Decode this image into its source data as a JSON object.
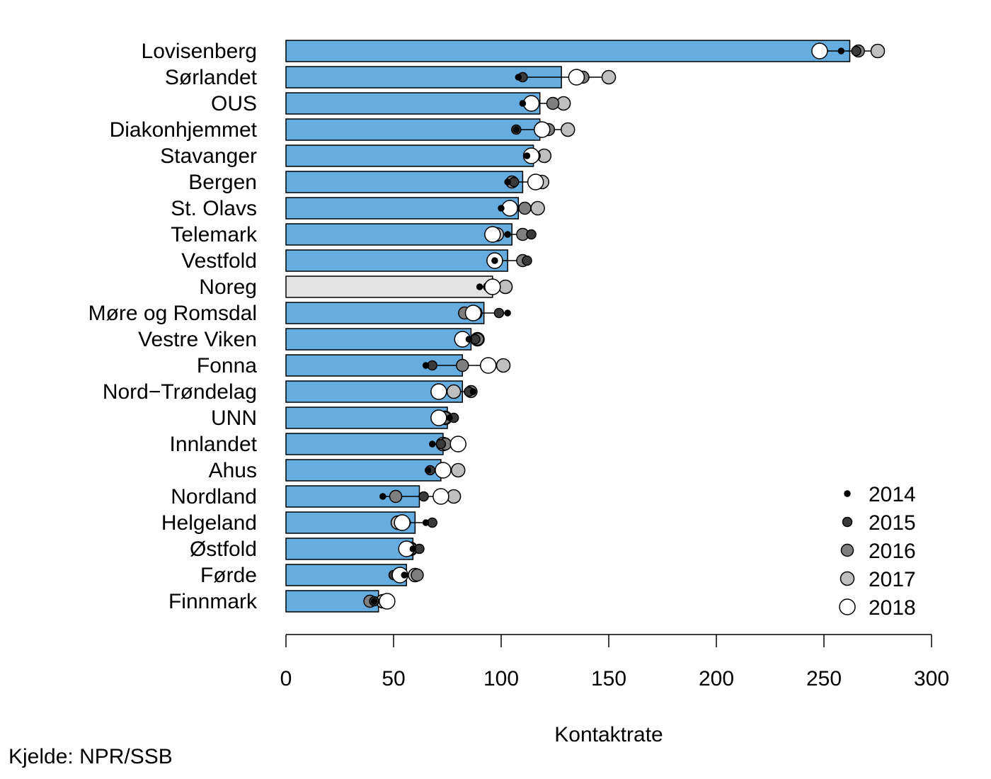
{
  "chart_data": {
    "type": "bar",
    "orientation": "horizontal",
    "title": "",
    "xlabel": "Kontaktrate",
    "ylabel": "",
    "xlim": [
      0,
      300
    ],
    "xticks": [
      0,
      50,
      100,
      150,
      200,
      250,
      300
    ],
    "grid": false,
    "legend_position": "bottom-right",
    "colors": {
      "bar": "#66ACDF",
      "bar_highlight": "#E3E3E3",
      "y2014": "#000000",
      "y2015": "#3a3a3a",
      "y2016": "#7f7f7f",
      "y2017": "#bfbfbf",
      "y2018": "#ffffff"
    },
    "legend": [
      "2014",
      "2015",
      "2016",
      "2017",
      "2018"
    ],
    "highlight_category": "Noreg",
    "categories": [
      "Lovisenberg",
      "Sørlandet",
      "OUS",
      "Diakonhjemmet",
      "Stavanger",
      "Bergen",
      "St. Olavs",
      "Telemark",
      "Vestfold",
      "Noreg",
      "Møre og Romsdal",
      "Vestre Viken",
      "Fonna",
      "Nord−Trøndelag",
      "UNN",
      "Innlandet",
      "Ahus",
      "Nordland",
      "Helgeland",
      "Østfold",
      "Førde",
      "Finnmark"
    ],
    "values": [
      262,
      128,
      118,
      118,
      115,
      110,
      108,
      105,
      103,
      96,
      92,
      86,
      82,
      82,
      75,
      73,
      72,
      62,
      60,
      59,
      56,
      43
    ],
    "points": [
      {
        "y2014": 258,
        "y2015": 265,
        "y2016": 266,
        "y2017": 275,
        "y2018": 248
      },
      {
        "y2014": 108,
        "y2015": 110,
        "y2016": 138,
        "y2017": 150,
        "y2018": 135
      },
      {
        "y2014": 110,
        "y2015": 113,
        "y2016": 124,
        "y2017": 129,
        "y2018": 114
      },
      {
        "y2014": 107,
        "y2015": 107,
        "y2016": 122,
        "y2017": 131,
        "y2018": 119
      },
      {
        "y2014": 112,
        "y2015": 116,
        "y2016": 115,
        "y2017": 120,
        "y2018": 114
      },
      {
        "y2014": 103,
        "y2015": 106,
        "y2016": 105,
        "y2017": 119,
        "y2018": 116
      },
      {
        "y2014": 100,
        "y2015": 105,
        "y2016": 111,
        "y2017": 117,
        "y2018": 104
      },
      {
        "y2014": 103,
        "y2015": 114,
        "y2016": 110,
        "y2017": 98,
        "y2018": 96
      },
      {
        "y2014": 97,
        "y2015": 112,
        "y2016": 110,
        "y2017": 97,
        "y2018": 97
      },
      {
        "y2014": 90,
        "y2015": 94,
        "y2016": 96,
        "y2017": 102,
        "y2018": 96
      },
      {
        "y2014": 103,
        "y2015": 99,
        "y2016": 83,
        "y2017": 88,
        "y2018": 87
      },
      {
        "y2014": 85,
        "y2015": 88,
        "y2016": 89,
        "y2017": 89,
        "y2018": 82
      },
      {
        "y2014": 65,
        "y2015": 68,
        "y2016": 82,
        "y2017": 101,
        "y2018": 94
      },
      {
        "y2014": 87,
        "y2015": 85,
        "y2016": 86,
        "y2017": 78,
        "y2018": 71
      },
      {
        "y2014": 76,
        "y2015": 78,
        "y2016": 74,
        "y2017": 74,
        "y2018": 71
      },
      {
        "y2014": 68,
        "y2015": 72,
        "y2016": 74,
        "y2017": 73,
        "y2018": 80
      },
      {
        "y2014": 66,
        "y2015": 67,
        "y2016": 73,
        "y2017": 80,
        "y2018": 73
      },
      {
        "y2014": 45,
        "y2015": 64,
        "y2016": 51,
        "y2017": 78,
        "y2018": 72
      },
      {
        "y2014": 65,
        "y2015": 68,
        "y2016": 55,
        "y2017": 52,
        "y2018": 54
      },
      {
        "y2014": 59,
        "y2015": 62,
        "y2016": 58,
        "y2017": 58,
        "y2018": 56
      },
      {
        "y2014": 55,
        "y2015": 50,
        "y2016": 61,
        "y2017": 60,
        "y2018": 53
      },
      {
        "y2014": 41,
        "y2015": 41,
        "y2016": 39,
        "y2017": 45,
        "y2018": 47
      }
    ]
  },
  "source_note": "Kjelde: NPR/SSB"
}
